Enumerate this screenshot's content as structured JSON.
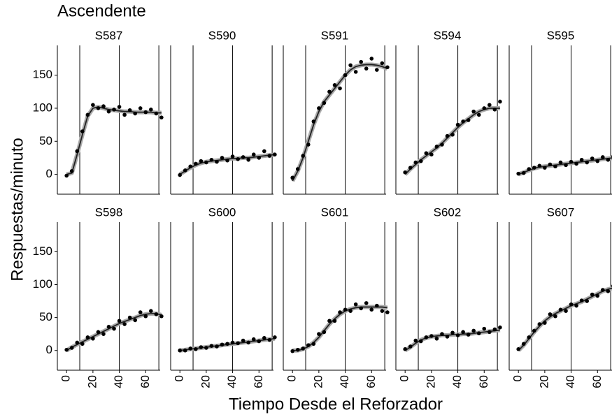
{
  "chart_data": {
    "type": "scatter",
    "title": "Ascendente",
    "x_label": "Tiempo Desde el Reforzador",
    "y_label": "Respuestas/minuto",
    "xlim": [
      -7,
      71
    ],
    "xticks": [
      0,
      20,
      40,
      60
    ],
    "ylim": [
      -30,
      195
    ],
    "yticks": [
      0,
      50,
      100,
      150
    ],
    "vlines": [
      10,
      40,
      70
    ],
    "x": [
      0,
      4,
      8,
      12,
      16,
      20,
      24,
      28,
      32,
      36,
      40,
      44,
      48,
      52,
      56,
      60,
      64,
      68,
      72
    ],
    "panels": [
      {
        "name": "S587",
        "values": [
          -2,
          5,
          35,
          65,
          90,
          105,
          100,
          103,
          95,
          98,
          102,
          90,
          97,
          92,
          100,
          94,
          98,
          92,
          86
        ],
        "fit": [
          0,
          2,
          30,
          60,
          88,
          100,
          102,
          100,
          98,
          97,
          96,
          95,
          95,
          94,
          94,
          94,
          94,
          93,
          93
        ]
      },
      {
        "name": "S590",
        "values": [
          -1,
          6,
          12,
          16,
          20,
          18,
          22,
          19,
          25,
          21,
          27,
          23,
          26,
          22,
          30,
          25,
          35,
          28,
          30
        ],
        "fit": [
          0,
          5,
          10,
          14,
          17,
          19,
          20,
          21,
          22,
          23,
          24,
          24,
          25,
          25,
          26,
          27,
          28,
          29,
          30
        ]
      },
      {
        "name": "S591",
        "values": [
          -5,
          8,
          28,
          45,
          80,
          100,
          108,
          125,
          135,
          130,
          150,
          165,
          155,
          170,
          160,
          175,
          158,
          168,
          162
        ],
        "fit": [
          -10,
          5,
          25,
          50,
          75,
          95,
          110,
          120,
          130,
          140,
          150,
          158,
          163,
          165,
          166,
          166,
          165,
          163,
          160
        ]
      },
      {
        "name": "S594",
        "values": [
          3,
          10,
          18,
          20,
          32,
          30,
          42,
          45,
          58,
          60,
          75,
          80,
          82,
          95,
          90,
          100,
          105,
          98,
          110
        ],
        "fit": [
          0,
          8,
          15,
          22,
          28,
          34,
          40,
          47,
          55,
          63,
          71,
          78,
          84,
          90,
          95,
          98,
          100,
          100,
          100
        ]
      },
      {
        "name": "S595",
        "values": [
          1,
          2,
          8,
          10,
          13,
          10,
          15,
          12,
          18,
          14,
          19,
          16,
          22,
          18,
          24,
          20,
          26,
          22,
          27
        ],
        "fit": [
          0,
          3,
          6,
          9,
          11,
          12,
          13,
          14,
          15,
          16,
          17,
          18,
          19,
          20,
          21,
          22,
          23,
          24,
          25
        ]
      },
      {
        "name": "S598",
        "values": [
          1,
          4,
          12,
          10,
          20,
          18,
          28,
          25,
          36,
          33,
          45,
          40,
          50,
          46,
          58,
          52,
          60,
          55,
          52
        ],
        "fit": [
          0,
          5,
          9,
          13,
          17,
          21,
          25,
          29,
          33,
          37,
          41,
          44,
          47,
          50,
          53,
          55,
          56,
          56,
          54
        ]
      },
      {
        "name": "S600",
        "values": [
          0,
          0,
          3,
          2,
          5,
          4,
          7,
          6,
          9,
          10,
          12,
          11,
          15,
          12,
          17,
          14,
          19,
          16,
          20
        ],
        "fit": [
          0,
          1,
          2,
          3,
          4,
          5,
          6,
          7,
          8,
          9,
          10,
          11,
          12,
          13,
          14,
          15,
          16,
          17,
          18
        ]
      },
      {
        "name": "S601",
        "values": [
          -1,
          1,
          3,
          8,
          10,
          25,
          28,
          45,
          45,
          58,
          62,
          60,
          70,
          64,
          72,
          62,
          68,
          60,
          58
        ],
        "fit": [
          0,
          0,
          2,
          6,
          12,
          20,
          30,
          40,
          48,
          55,
          60,
          63,
          65,
          66,
          66,
          66,
          66,
          66,
          65
        ]
      },
      {
        "name": "S602",
        "values": [
          2,
          6,
          15,
          14,
          20,
          22,
          18,
          25,
          21,
          27,
          23,
          28,
          24,
          30,
          26,
          33,
          28,
          32,
          35
        ],
        "fit": [
          0,
          5,
          11,
          16,
          19,
          21,
          22,
          23,
          23,
          24,
          24,
          25,
          25,
          26,
          27,
          28,
          29,
          30,
          31
        ]
      },
      {
        "name": "S607",
        "values": [
          2,
          10,
          20,
          30,
          40,
          42,
          55,
          52,
          62,
          60,
          70,
          68,
          76,
          75,
          85,
          83,
          92,
          90,
          98
        ],
        "fit": [
          0,
          8,
          18,
          28,
          37,
          45,
          51,
          56,
          60,
          64,
          68,
          71,
          74,
          78,
          82,
          86,
          90,
          93,
          95
        ]
      }
    ]
  }
}
